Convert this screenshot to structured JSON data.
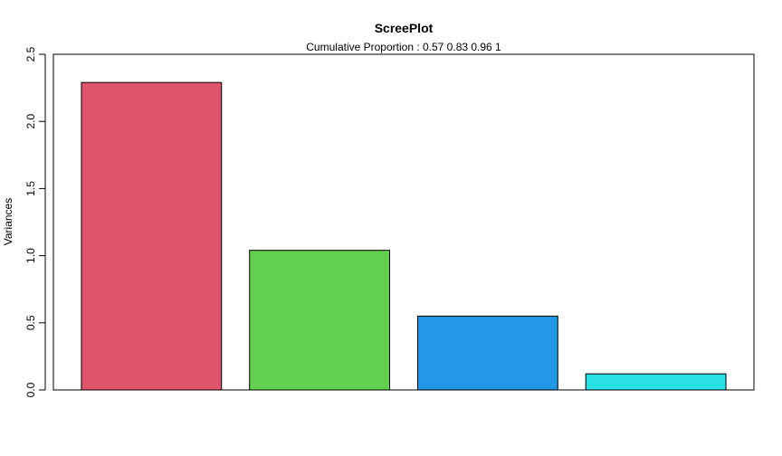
{
  "chart_data": {
    "type": "bar",
    "title": "ScreePlot",
    "subtitle": "Cumulative Proportion : 0.57 0.83 0.96 1",
    "xlabel": "",
    "ylabel": "Variances",
    "ylim": [
      0,
      2.5
    ],
    "yticks": [
      "0.0",
      "0.5",
      "1.0",
      "1.5",
      "2.0",
      "2.5"
    ],
    "grid": false,
    "legend": "none",
    "values": [
      2.29,
      1.04,
      0.55,
      0.12
    ],
    "colors": [
      "#DF536B",
      "#61D04F",
      "#2297E6",
      "#28E2E5"
    ]
  }
}
